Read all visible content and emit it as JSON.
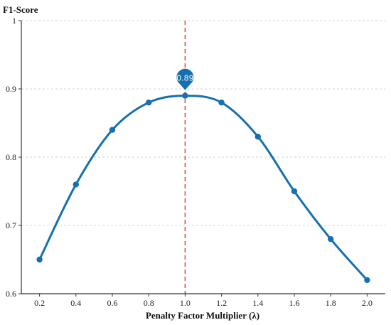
{
  "chart_data": {
    "type": "line",
    "ylabel": "F1-Score",
    "xlabel": "Penalty Factor Multiplier (λ)",
    "x": [
      0.2,
      0.4,
      0.6,
      0.8,
      1.0,
      1.2,
      1.4,
      1.6,
      1.8,
      2.0
    ],
    "series": [
      {
        "values": [
          0.65,
          0.76,
          0.84,
          0.88,
          0.89,
          0.88,
          0.83,
          0.75,
          0.68,
          0.62
        ]
      }
    ],
    "xlim": [
      0.1,
      2.1
    ],
    "ylim": [
      0.6,
      1.0
    ],
    "xticks": [
      "0.2",
      "0.4",
      "0.6",
      "0.8",
      "1.0",
      "1.2",
      "1.4",
      "1.6",
      "1.8",
      "2.0"
    ],
    "yticks": [
      "0.6",
      "0.7",
      "0.8",
      "0.9",
      "1"
    ],
    "grid": "horizontal dashed",
    "reference_line_x": 1.0,
    "annotation": {
      "x": 1.0,
      "y": 0.89,
      "text": "0.89"
    },
    "colors": {
      "series": "#1670ae",
      "reference": "#d9533a"
    }
  }
}
